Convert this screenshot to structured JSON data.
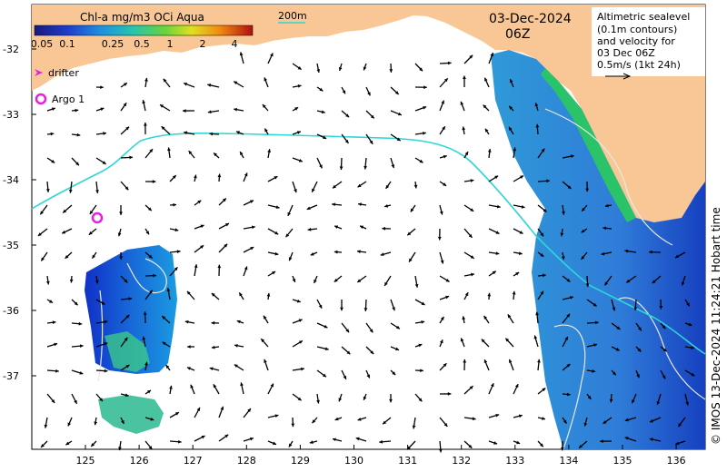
{
  "colorbar": {
    "title": "Chl-a mg/m3 OCi Aqua",
    "ticks": [
      "0.05",
      "0.1",
      "0.25",
      "0.5",
      "1",
      "2",
      "4"
    ]
  },
  "isobath_label": "200m",
  "date": "03-Dec-2024",
  "time": "06Z",
  "legend": {
    "lines": [
      "Altimetric sealevel",
      "(0.1m contours)",
      "and velocity for",
      "03 Dec 06Z",
      "0.5m/s (1kt 24h)"
    ]
  },
  "markers": {
    "drifter_label": "drifter",
    "argo_label": "Argo 1"
  },
  "y_ticks": [
    "-32",
    "-33",
    "-34",
    "-35",
    "-36",
    "-37"
  ],
  "x_ticks": [
    "125",
    "126",
    "127",
    "128",
    "129",
    "130",
    "131",
    "132",
    "133",
    "134",
    "135",
    "136"
  ],
  "credit": "© IMOS 13-Dec-2024 11:24:21 Hobart time",
  "colors": {
    "land": "#f9c796",
    "isobath": "#2fd6d6",
    "arrow": "#000000",
    "argo": "#e61ee6",
    "drifter": "#e61ee6"
  }
}
